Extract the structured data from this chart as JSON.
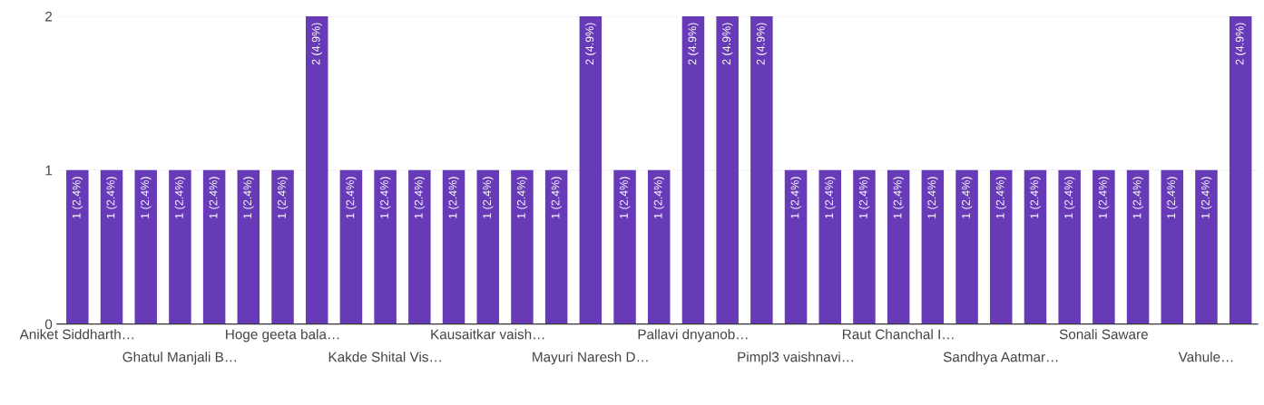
{
  "chart_data": {
    "type": "bar",
    "categories": [
      "Aniket Siddharth…",
      null,
      null,
      "Ghatul Manjali B…",
      null,
      null,
      "Hoge geeta bala…",
      null,
      null,
      "Kakde Shital Vis…",
      null,
      null,
      "Kausaitkar vaish…",
      null,
      null,
      "Mayuri Naresh D…",
      null,
      null,
      "Pallavi dnyanob…",
      null,
      null,
      "Pimpl3 vaishnavi…",
      null,
      null,
      "Raut Chanchal I…",
      null,
      null,
      "Sandhya Aatmar…",
      null,
      null,
      "Sonali Saware",
      null,
      null,
      "Vahule…",
      null
    ],
    "values": [
      1,
      1,
      1,
      1,
      1,
      1,
      1,
      2,
      1,
      1,
      1,
      1,
      1,
      1,
      1,
      2,
      1,
      1,
      2,
      2,
      2,
      1,
      1,
      1,
      1,
      1,
      1,
      1,
      1,
      1,
      1,
      1,
      1,
      1,
      2
    ],
    "value_labels": [
      "1 (2.4%)",
      "1 (2.4%)",
      "1 (2.4%)",
      "1 (2.4%)",
      "1 (2.4%)",
      "1 (2.4%)",
      "1 (2.4%)",
      "2 (4.9%)",
      "1 (2.4%)",
      "1 (2.4%)",
      "1 (2.4%)",
      "1 (2.4%)",
      "1 (2.4%)",
      "1 (2.4%)",
      "1 (2.4%)",
      "2 (4.9%)",
      "1 (2.4%)",
      "1 (2.4%)",
      "2 (4.9%)",
      "2 (4.9%)",
      "2 (4.9%)",
      "1 (2.4%)",
      "1 (2.4%)",
      "1 (2.4%)",
      "1 (2.4%)",
      "1 (2.4%)",
      "1 (2.4%)",
      "1 (2.4%)",
      "1 (2.4%)",
      "1 (2.4%)",
      "1 (2.4%)",
      "1 (2.4%)",
      "1 (2.4%)",
      "1 (2.4%)",
      "2 (4.9%)"
    ],
    "color": "#673ab7",
    "ylim": [
      0,
      2
    ],
    "yticks": [
      0,
      1,
      2
    ],
    "grid": "y"
  }
}
